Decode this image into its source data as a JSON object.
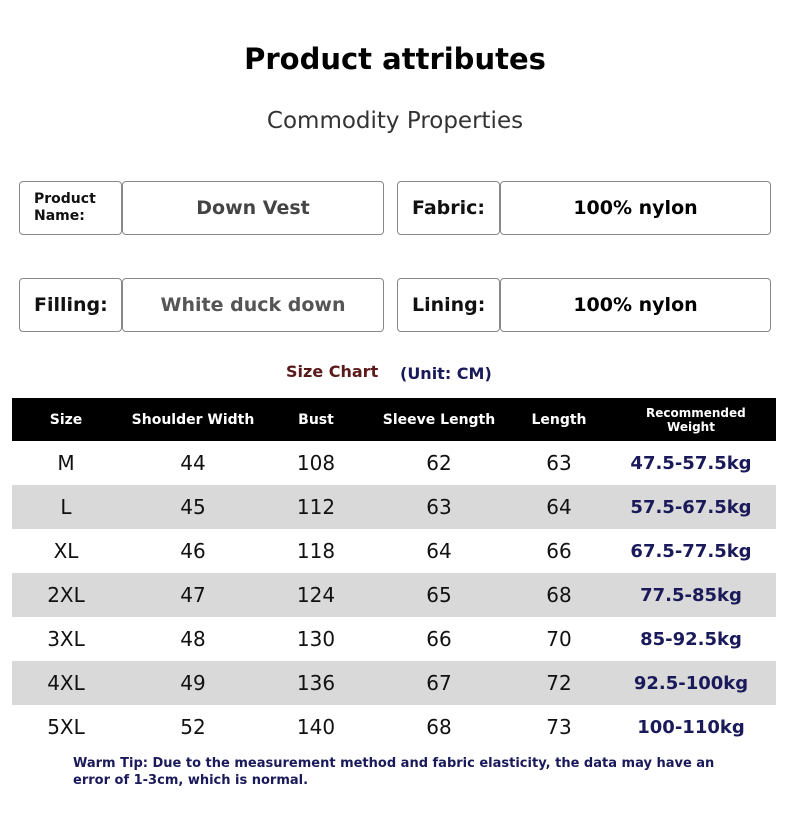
{
  "header": {
    "title": "Product attributes",
    "subtitle": "Commodity Properties"
  },
  "attributes": [
    {
      "label": "Product Name:",
      "value": "Down Vest"
    },
    {
      "label": "Fabric:",
      "value": "100% nylon"
    },
    {
      "label": "Filling:",
      "value": "White duck down"
    },
    {
      "label": "Lining:",
      "value": "100% nylon"
    }
  ],
  "size_chart": {
    "title": "Size Chart",
    "unit": "(Unit: CM)",
    "columns": [
      "Size",
      "Shoulder Width",
      "Bust",
      "Sleeve Length",
      "Length",
      "Recommended Weight"
    ],
    "rows": [
      [
        "M",
        "44",
        "108",
        "62",
        "63",
        "47.5-57.5kg"
      ],
      [
        "L",
        "45",
        "112",
        "63",
        "64",
        "57.5-67.5kg"
      ],
      [
        "XL",
        "46",
        "118",
        "64",
        "66",
        "67.5-77.5kg"
      ],
      [
        "2XL",
        "47",
        "124",
        "65",
        "68",
        "77.5-85kg"
      ],
      [
        "3XL",
        "48",
        "130",
        "66",
        "70",
        "85-92.5kg"
      ],
      [
        "4XL",
        "49",
        "136",
        "67",
        "72",
        "92.5-100kg"
      ],
      [
        "5XL",
        "52",
        "140",
        "68",
        "73",
        "100-110kg"
      ]
    ]
  },
  "tip": "Warm Tip: Due to the measurement method and fabric elasticity, the data may have an error of 1-3cm, which is normal."
}
